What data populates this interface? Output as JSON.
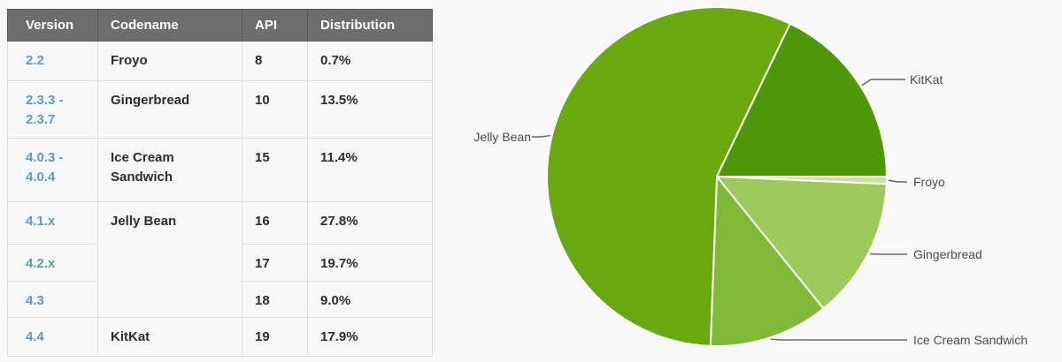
{
  "table": {
    "headers": [
      "Version",
      "Codename",
      "API",
      "Distribution"
    ],
    "rows": [
      {
        "version": "2.2",
        "codename": "Froyo",
        "api": "8",
        "distribution": "0.7%"
      },
      {
        "version": "2.3.3 -\n2.3.7",
        "codename": "Gingerbread",
        "api": "10",
        "distribution": "13.5%"
      },
      {
        "version": "4.0.3 -\n4.0.4",
        "codename": "Ice Cream\nSandwich",
        "api": "15",
        "distribution": "11.4%"
      },
      {
        "version": "4.1.x",
        "codename": "Jelly Bean",
        "api": "16",
        "distribution": "27.8%"
      },
      {
        "version": "4.2.x",
        "codename": "",
        "api": "17",
        "distribution": "19.7%"
      },
      {
        "version": "4.3",
        "codename": "",
        "api": "18",
        "distribution": "9.0%"
      },
      {
        "version": "4.4",
        "codename": "KitKat",
        "api": "19",
        "distribution": "17.9%"
      }
    ]
  },
  "chart_data": {
    "type": "pie",
    "labels": [
      "Froyo",
      "Gingerbread",
      "Ice Cream Sandwich",
      "Jelly Bean",
      "KitKat"
    ],
    "values": [
      0.7,
      13.5,
      11.4,
      56.5,
      17.9
    ],
    "colors": [
      "#c9e2a0",
      "#9dca5a",
      "#80b838",
      "#69a90f",
      "#4f9708"
    ],
    "start_angle_deg": 0,
    "direction": "clockwise",
    "slice_border_color": "#ffffff",
    "leader_line_color": "#666666",
    "label_text_color": "#4a4a4a",
    "legend_position": "outside-labels"
  },
  "colors": {
    "header_bg": "#6d6d6d",
    "header_text": "#ffffff",
    "row_bg": "#f7f7f7",
    "version_link": "#5e9cc3",
    "body_text": "#2d2d2d",
    "page_bg": "#f8f8f8"
  }
}
